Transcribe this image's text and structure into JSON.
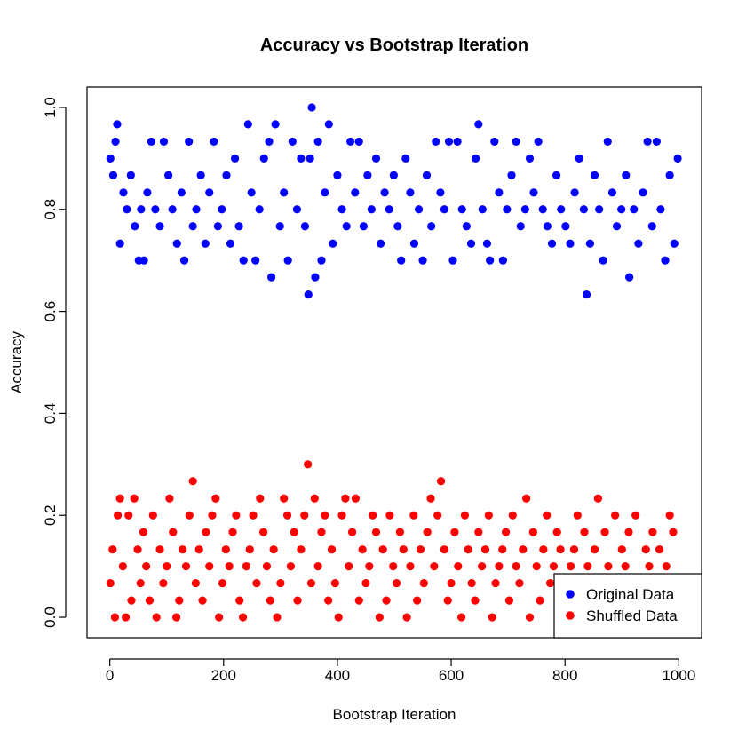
{
  "chart_data": {
    "type": "scatter",
    "title": "Accuracy vs Bootstrap Iteration",
    "xlabel": "Bootstrap Iteration",
    "ylabel": "Accuracy",
    "xlim": [
      -40,
      1040
    ],
    "ylim": [
      -0.04,
      1.04
    ],
    "x_ticks": [
      0,
      200,
      400,
      600,
      800,
      1000
    ],
    "x_tick_labels": [
      "0",
      "200",
      "400",
      "600",
      "800",
      "1000"
    ],
    "y_ticks": [
      0.0,
      0.2,
      0.4,
      0.6,
      0.8,
      1.0
    ],
    "y_tick_labels": [
      "0.0",
      "0.2",
      "0.4",
      "0.6",
      "0.8",
      "1.0"
    ],
    "grid": false,
    "legend_position": "bottom-right",
    "series": [
      {
        "name": "Original Data",
        "color": "#0000ff",
        "marker": "filled-circle",
        "x": [
          1,
          6,
          10,
          13,
          18,
          24,
          30,
          37,
          44,
          51,
          55,
          60,
          66,
          73,
          80,
          88,
          95,
          103,
          110,
          118,
          126,
          131,
          139,
          146,
          152,
          160,
          168,
          175,
          183,
          190,
          197,
          205,
          212,
          220,
          227,
          235,
          243,
          249,
          256,
          263,
          271,
          280,
          284,
          291,
          299,
          306,
          313,
          321,
          329,
          336,
          343,
          349,
          352,
          355,
          361,
          366,
          372,
          378,
          385,
          392,
          400,
          408,
          416,
          423,
          431,
          438,
          446,
          453,
          460,
          468,
          476,
          483,
          491,
          499,
          506,
          512,
          520,
          528,
          535,
          543,
          550,
          557,
          565,
          573,
          581,
          588,
          596,
          603,
          611,
          619,
          627,
          635,
          643,
          648,
          655,
          663,
          668,
          676,
          684,
          691,
          698,
          706,
          714,
          722,
          730,
          738,
          745,
          753,
          761,
          769,
          777,
          785,
          793,
          801,
          809,
          817,
          825,
          833,
          838,
          844,
          852,
          860,
          867,
          875,
          883,
          891,
          899,
          907,
          913,
          921,
          929,
          937,
          945,
          953,
          961,
          968,
          976,
          984,
          992,
          998
        ],
        "values": [
          0.9,
          0.867,
          0.933,
          0.967,
          0.733,
          0.833,
          0.8,
          0.867,
          0.767,
          0.7,
          0.8,
          0.7,
          0.833,
          0.933,
          0.8,
          0.767,
          0.933,
          0.867,
          0.8,
          0.733,
          0.833,
          0.7,
          0.933,
          0.767,
          0.8,
          0.867,
          0.733,
          0.833,
          0.933,
          0.767,
          0.8,
          0.867,
          0.733,
          0.9,
          0.767,
          0.7,
          0.967,
          0.833,
          0.7,
          0.8,
          0.9,
          0.933,
          0.667,
          0.967,
          0.767,
          0.833,
          0.7,
          0.933,
          0.8,
          0.9,
          0.767,
          0.633,
          0.9,
          1.0,
          0.667,
          0.933,
          0.7,
          0.833,
          0.967,
          0.733,
          0.867,
          0.8,
          0.767,
          0.933,
          0.833,
          0.933,
          0.767,
          0.867,
          0.8,
          0.9,
          0.733,
          0.833,
          0.8,
          0.867,
          0.767,
          0.7,
          0.9,
          0.833,
          0.733,
          0.8,
          0.7,
          0.867,
          0.767,
          0.933,
          0.833,
          0.8,
          0.933,
          0.7,
          0.933,
          0.8,
          0.767,
          0.733,
          0.9,
          0.967,
          0.8,
          0.733,
          0.7,
          0.933,
          0.833,
          0.7,
          0.8,
          0.867,
          0.933,
          0.767,
          0.8,
          0.9,
          0.833,
          0.933,
          0.8,
          0.767,
          0.733,
          0.867,
          0.8,
          0.767,
          0.733,
          0.833,
          0.9,
          0.8,
          0.633,
          0.733,
          0.867,
          0.8,
          0.7,
          0.933,
          0.833,
          0.767,
          0.8,
          0.867,
          0.667,
          0.8,
          0.733,
          0.833,
          0.933,
          0.767,
          0.933,
          0.8,
          0.7,
          0.867,
          0.733,
          0.9
        ]
      },
      {
        "name": "Shuffled Data",
        "color": "#ff0000",
        "marker": "filled-circle",
        "x": [
          1,
          5,
          9,
          14,
          18,
          23,
          28,
          33,
          38,
          43,
          49,
          54,
          59,
          64,
          70,
          76,
          82,
          88,
          94,
          100,
          105,
          111,
          117,
          122,
          128,
          134,
          140,
          146,
          151,
          157,
          163,
          169,
          175,
          180,
          186,
          192,
          198,
          204,
          210,
          216,
          222,
          228,
          234,
          240,
          246,
          252,
          258,
          264,
          270,
          276,
          282,
          288,
          294,
          300,
          306,
          312,
          318,
          324,
          330,
          336,
          342,
          348,
          354,
          360,
          366,
          372,
          378,
          384,
          390,
          396,
          402,
          408,
          414,
          420,
          426,
          432,
          438,
          444,
          450,
          456,
          462,
          468,
          474,
          480,
          486,
          492,
          498,
          504,
          510,
          516,
          522,
          528,
          534,
          540,
          546,
          552,
          558,
          564,
          570,
          576,
          582,
          588,
          594,
          600,
          606,
          612,
          618,
          624,
          630,
          636,
          642,
          648,
          654,
          660,
          666,
          672,
          678,
          684,
          690,
          696,
          702,
          708,
          714,
          720,
          726,
          732,
          738,
          744,
          750,
          756,
          762,
          768,
          774,
          780,
          786,
          792,
          798,
          804,
          810,
          816,
          822,
          828,
          834,
          840,
          846,
          852,
          858,
          864,
          870,
          876,
          882,
          888,
          894,
          900,
          906,
          912,
          918,
          924,
          930,
          936,
          942,
          948,
          954,
          960,
          966,
          972,
          978,
          984,
          990,
          996
        ],
        "values": [
          0.067,
          0.133,
          0.0,
          0.2,
          0.233,
          0.1,
          0.0,
          0.2,
          0.033,
          0.233,
          0.133,
          0.067,
          0.167,
          0.1,
          0.033,
          0.2,
          0.0,
          0.133,
          0.067,
          0.1,
          0.233,
          0.167,
          0.0,
          0.033,
          0.133,
          0.1,
          0.2,
          0.267,
          0.067,
          0.133,
          0.033,
          0.167,
          0.1,
          0.2,
          0.233,
          0.0,
          0.067,
          0.133,
          0.1,
          0.167,
          0.2,
          0.033,
          0.0,
          0.1,
          0.133,
          0.2,
          0.067,
          0.233,
          0.167,
          0.1,
          0.033,
          0.133,
          0.0,
          0.067,
          0.233,
          0.2,
          0.1,
          0.167,
          0.033,
          0.133,
          0.2,
          0.3,
          0.067,
          0.233,
          0.1,
          0.167,
          0.2,
          0.033,
          0.133,
          0.067,
          0.0,
          0.2,
          0.233,
          0.1,
          0.167,
          0.233,
          0.033,
          0.133,
          0.067,
          0.1,
          0.2,
          0.167,
          0.0,
          0.133,
          0.033,
          0.2,
          0.1,
          0.067,
          0.167,
          0.133,
          0.0,
          0.1,
          0.2,
          0.033,
          0.133,
          0.067,
          0.167,
          0.233,
          0.1,
          0.2,
          0.267,
          0.133,
          0.033,
          0.067,
          0.167,
          0.1,
          0.0,
          0.2,
          0.133,
          0.067,
          0.033,
          0.167,
          0.1,
          0.133,
          0.2,
          0.0,
          0.067,
          0.1,
          0.133,
          0.167,
          0.033,
          0.2,
          0.1,
          0.067,
          0.133,
          0.233,
          0.0,
          0.167,
          0.1,
          0.033,
          0.133,
          0.2,
          0.067,
          0.1,
          0.167,
          0.133,
          0.033,
          0.067,
          0.1,
          0.133,
          0.2,
          0.033,
          0.167,
          0.1,
          0.067,
          0.133,
          0.233,
          0.0,
          0.167,
          0.1,
          0.033,
          0.2,
          0.067,
          0.133,
          0.1,
          0.167,
          0.0,
          0.2,
          0.067,
          0.033,
          0.133,
          0.1,
          0.167,
          0.0,
          0.133,
          0.067,
          0.1,
          0.2,
          0.167,
          0.033
        ]
      }
    ]
  }
}
